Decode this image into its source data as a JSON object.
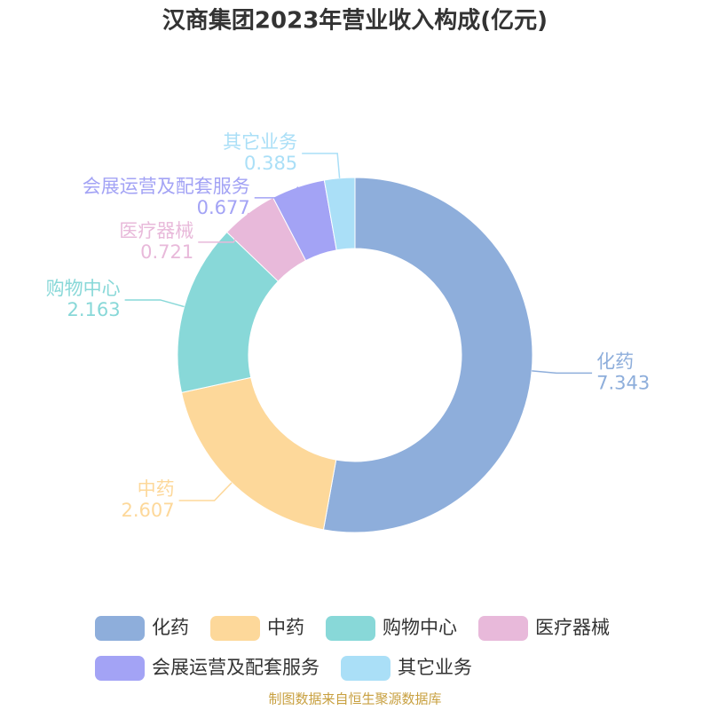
{
  "chart_data": {
    "type": "donut",
    "title": "汉商集团2023年营业收入构成(亿元)",
    "categories": [
      "化药",
      "中药",
      "购物中心",
      "医疗器械",
      "会展运营及配套服务",
      "其它业务"
    ],
    "values": [
      7.343,
      2.607,
      2.163,
      0.721,
      0.677,
      0.385
    ],
    "colors": [
      "#8eaedb",
      "#fdd89a",
      "#88d8d8",
      "#e8b9da",
      "#a3a3f5",
      "#aadff7"
    ],
    "legend": "bottom",
    "source": "制图数据来自恒生聚源数据库"
  }
}
